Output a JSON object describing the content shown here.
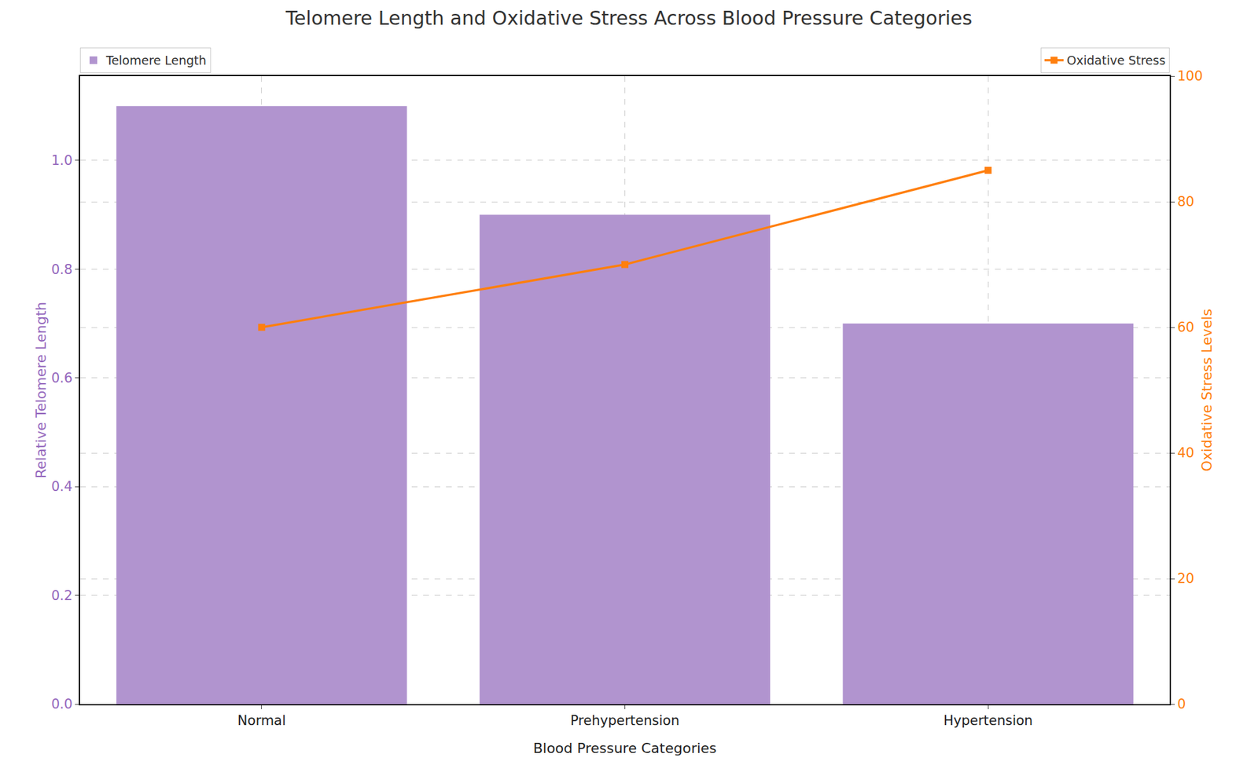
{
  "chart_data": {
    "type": "bar",
    "title": "Telomere Length and Oxidative Stress Across Blood Pressure Categories",
    "x_label": "Blood Pressure Categories",
    "y_label": "Relative Telomere Length",
    "y2_label": "Oxidative Stress Levels",
    "categories": [
      "Normal",
      "Prehypertension",
      "Hypertension"
    ],
    "series": [
      {
        "name": "Telomere Length",
        "type": "bar",
        "color": "#b194cf",
        "values": [
          1.1,
          0.9,
          0.7
        ],
        "legend": "upper left"
      },
      {
        "name": "Oxidative Stress",
        "type": "line",
        "axis": "y2",
        "color": "#ff7f0e",
        "marker": "square",
        "line_style": "solid",
        "values": [
          60,
          70,
          85
        ],
        "legend": "upper right"
      }
    ],
    "ylim": [
      0,
      1.155
    ],
    "yticks": [
      {
        "value": 0,
        "label": "0.0"
      },
      0.2,
      0.4,
      0.6,
      0.8,
      {
        "value": 1,
        "label": "1.0"
      }
    ],
    "y2lim": [
      0,
      100
    ],
    "y2ticks": [
      0,
      20,
      40,
      60,
      80,
      100
    ],
    "grid": true
  }
}
